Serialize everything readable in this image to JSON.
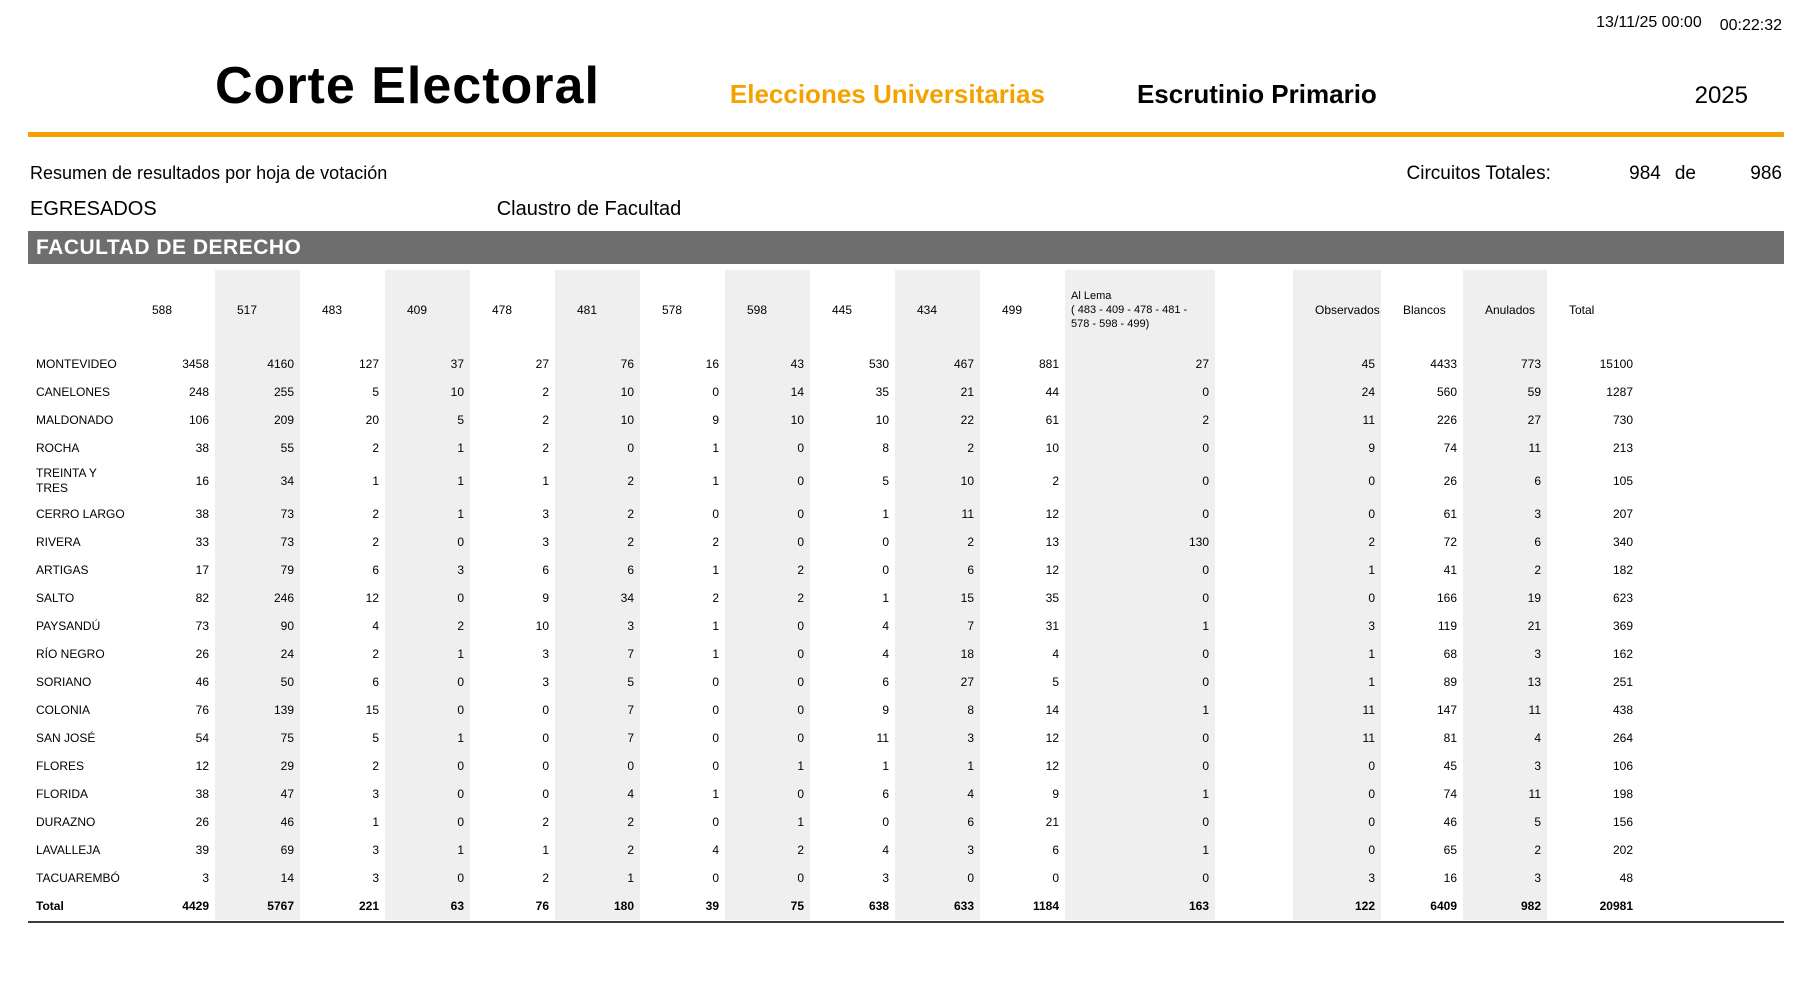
{
  "colors": {
    "accent_orange": "#F5A200",
    "section_gray": "#6E6E6E",
    "band_gray": "#EFEFEF"
  },
  "header": {
    "date": "13/11/25 00:00",
    "time": "00:22:32",
    "org": "Corte Electoral",
    "election": "Elecciones Universitarias",
    "stage": "Escrutinio Primario",
    "year": "2025"
  },
  "subheader": {
    "summary_title": "Resumen de resultados por hoja de votación",
    "group": "EGRESADOS",
    "body": "Claustro de Facultad",
    "circuits_label": "Circuitos Totales:",
    "circuits_counted": "984",
    "circuits_of_word": "de",
    "circuits_total": "986"
  },
  "section": {
    "title": "FACULTAD DE DERECHO"
  },
  "table": {
    "columns": [
      {
        "name": "department-column",
        "label": ""
      },
      {
        "name": "list-588-column",
        "label": "588"
      },
      {
        "name": "list-517-column",
        "label": "517"
      },
      {
        "name": "list-483-column",
        "label": "483"
      },
      {
        "name": "list-409-column",
        "label": "409"
      },
      {
        "name": "list-478-column",
        "label": "478"
      },
      {
        "name": "list-481-column",
        "label": "481"
      },
      {
        "name": "list-578-column",
        "label": "578"
      },
      {
        "name": "list-598-column",
        "label": "598"
      },
      {
        "name": "list-445-column",
        "label": "445"
      },
      {
        "name": "list-434-column",
        "label": "434"
      },
      {
        "name": "list-499-column",
        "label": "499"
      },
      {
        "name": "al-lema-column",
        "label": "Al Lema\n( 483 - 409 - 478 - 481 - 578 - 598 - 499)"
      },
      {
        "name": "spacer-column",
        "label": ""
      },
      {
        "name": "observados-column",
        "label": "Observados"
      },
      {
        "name": "blancos-column",
        "label": "Blancos"
      },
      {
        "name": "anulados-column",
        "label": "Anulados"
      },
      {
        "name": "total-column",
        "label": "Total"
      }
    ],
    "rows": [
      {
        "department": "MONTEVIDEO",
        "values": [
          3458,
          4160,
          127,
          37,
          27,
          76,
          16,
          43,
          530,
          467,
          881,
          27,
          45,
          4433,
          773,
          15100
        ]
      },
      {
        "department": "CANELONES",
        "values": [
          248,
          255,
          5,
          10,
          2,
          10,
          0,
          14,
          35,
          21,
          44,
          0,
          24,
          560,
          59,
          1287
        ]
      },
      {
        "department": "MALDONADO",
        "values": [
          106,
          209,
          20,
          5,
          2,
          10,
          9,
          10,
          10,
          22,
          61,
          2,
          11,
          226,
          27,
          730
        ]
      },
      {
        "department": "ROCHA",
        "values": [
          38,
          55,
          2,
          1,
          2,
          0,
          1,
          0,
          8,
          2,
          10,
          0,
          9,
          74,
          11,
          213
        ]
      },
      {
        "department": "TREINTA Y TRES",
        "values": [
          16,
          34,
          1,
          1,
          1,
          2,
          1,
          0,
          5,
          10,
          2,
          0,
          0,
          26,
          6,
          105
        ]
      },
      {
        "department": "CERRO LARGO",
        "values": [
          38,
          73,
          2,
          1,
          3,
          2,
          0,
          0,
          1,
          11,
          12,
          0,
          0,
          61,
          3,
          207
        ]
      },
      {
        "department": "RIVERA",
        "values": [
          33,
          73,
          2,
          0,
          3,
          2,
          2,
          0,
          0,
          2,
          13,
          130,
          2,
          72,
          6,
          340
        ]
      },
      {
        "department": "ARTIGAS",
        "values": [
          17,
          79,
          6,
          3,
          6,
          6,
          1,
          2,
          0,
          6,
          12,
          0,
          1,
          41,
          2,
          182
        ]
      },
      {
        "department": "SALTO",
        "values": [
          82,
          246,
          12,
          0,
          9,
          34,
          2,
          2,
          1,
          15,
          35,
          0,
          0,
          166,
          19,
          623
        ]
      },
      {
        "department": "PAYSANDÚ",
        "values": [
          73,
          90,
          4,
          2,
          10,
          3,
          1,
          0,
          4,
          7,
          31,
          1,
          3,
          119,
          21,
          369
        ]
      },
      {
        "department": "RÍO NEGRO",
        "values": [
          26,
          24,
          2,
          1,
          3,
          7,
          1,
          0,
          4,
          18,
          4,
          0,
          1,
          68,
          3,
          162
        ]
      },
      {
        "department": "SORIANO",
        "values": [
          46,
          50,
          6,
          0,
          3,
          5,
          0,
          0,
          6,
          27,
          5,
          0,
          1,
          89,
          13,
          251
        ]
      },
      {
        "department": "COLONIA",
        "values": [
          76,
          139,
          15,
          0,
          0,
          7,
          0,
          0,
          9,
          8,
          14,
          1,
          11,
          147,
          11,
          438
        ]
      },
      {
        "department": "SAN JOSÉ",
        "values": [
          54,
          75,
          5,
          1,
          0,
          7,
          0,
          0,
          11,
          3,
          12,
          0,
          11,
          81,
          4,
          264
        ]
      },
      {
        "department": "FLORES",
        "values": [
          12,
          29,
          2,
          0,
          0,
          0,
          0,
          1,
          1,
          1,
          12,
          0,
          0,
          45,
          3,
          106
        ]
      },
      {
        "department": "FLORIDA",
        "values": [
          38,
          47,
          3,
          0,
          0,
          4,
          1,
          0,
          6,
          4,
          9,
          1,
          0,
          74,
          11,
          198
        ]
      },
      {
        "department": "DURAZNO",
        "values": [
          26,
          46,
          1,
          0,
          2,
          2,
          0,
          1,
          0,
          6,
          21,
          0,
          0,
          46,
          5,
          156
        ]
      },
      {
        "department": "LAVALLEJA",
        "values": [
          39,
          69,
          3,
          1,
          1,
          2,
          4,
          2,
          4,
          3,
          6,
          1,
          0,
          65,
          2,
          202
        ]
      },
      {
        "department": "TACUAREMBÓ",
        "values": [
          3,
          14,
          3,
          0,
          2,
          1,
          0,
          0,
          3,
          0,
          0,
          0,
          3,
          16,
          3,
          48
        ]
      }
    ],
    "total_row": {
      "label": "Total",
      "values": [
        4429,
        5767,
        221,
        63,
        76,
        180,
        39,
        75,
        638,
        633,
        1184,
        163,
        122,
        6409,
        982,
        20981
      ]
    }
  }
}
